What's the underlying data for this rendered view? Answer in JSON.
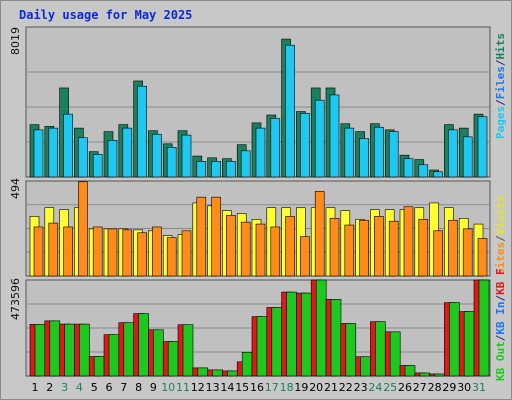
{
  "title": "Daily usage for May 2025",
  "colors": {
    "hits": "#1a8060",
    "files": "#1ec8f0",
    "visits": "#ffff33",
    "sites": "#ff8c1a",
    "kb_in": "#1ec81e",
    "kb_out": "#1e78f0",
    "kb_f": "#e01818",
    "background": "#c8c8c8",
    "plot_bg": "#c0c0c0",
    "green_day": "#1a8060"
  },
  "legend": {
    "top": [
      "Pages",
      "Files",
      "Hits"
    ],
    "mid": [
      "Visits",
      "Sites"
    ],
    "bottom": [
      "KB F",
      "KB In",
      "KB Out"
    ],
    "separator": "/"
  },
  "chart_data": [
    {
      "type": "bar",
      "panel": "hits-files-pages",
      "ymax_label": "8019",
      "ylim": [
        0,
        8019
      ],
      "categories": [
        "1",
        "2",
        "3",
        "4",
        "5",
        "6",
        "7",
        "8",
        "9",
        "10",
        "11",
        "12",
        "13",
        "14",
        "15",
        "16",
        "17",
        "18",
        "19",
        "20",
        "21",
        "22",
        "23",
        "24",
        "25",
        "26",
        "27",
        "28",
        "29",
        "30",
        "31"
      ],
      "weekend_days": [
        "3",
        "4",
        "10",
        "11",
        "17",
        "18",
        "24",
        "25",
        "31"
      ],
      "series": [
        {
          "name": "Hits",
          "values": [
            3000,
            2900,
            5100,
            2800,
            1450,
            2600,
            3000,
            5500,
            2650,
            1900,
            2650,
            1200,
            1100,
            1050,
            1850,
            3100,
            3550,
            7900,
            3750,
            5100,
            5100,
            3050,
            2600,
            3050,
            2700,
            1250,
            1000,
            400,
            3000,
            2800,
            3600
          ]
        },
        {
          "name": "Files",
          "values": [
            2700,
            2800,
            3600,
            2250,
            1300,
            2100,
            2800,
            5200,
            2450,
            1700,
            2400,
            900,
            900,
            900,
            1500,
            2800,
            3350,
            7550,
            3650,
            4400,
            4700,
            2800,
            2200,
            2850,
            2600,
            1050,
            700,
            300,
            2700,
            2300,
            3450
          ]
        },
        {
          "name": "Pages",
          "values": [
            0,
            0,
            0,
            0,
            0,
            0,
            0,
            0,
            0,
            0,
            0,
            0,
            0,
            0,
            0,
            0,
            0,
            0,
            0,
            0,
            0,
            0,
            0,
            0,
            0,
            0,
            0,
            0,
            0,
            0,
            0
          ]
        }
      ]
    },
    {
      "type": "bar",
      "panel": "visits-sites",
      "ymax_label": "494",
      "ylim": [
        0,
        494
      ],
      "categories": [
        "1",
        "2",
        "3",
        "4",
        "5",
        "6",
        "7",
        "8",
        "9",
        "10",
        "11",
        "12",
        "13",
        "14",
        "15",
        "16",
        "17",
        "18",
        "19",
        "20",
        "21",
        "22",
        "23",
        "24",
        "25",
        "26",
        "27",
        "28",
        "29",
        "30",
        "31"
      ],
      "series": [
        {
          "name": "Visits",
          "values": [
            310,
            355,
            345,
            355,
            245,
            245,
            245,
            240,
            235,
            210,
            215,
            380,
            365,
            340,
            325,
            295,
            355,
            355,
            355,
            355,
            355,
            340,
            295,
            345,
            345,
            345,
            355,
            380,
            355,
            300,
            270
          ]
        },
        {
          "name": "Sites",
          "values": [
            255,
            275,
            255,
            490,
            255,
            245,
            240,
            225,
            255,
            200,
            235,
            410,
            410,
            315,
            280,
            270,
            255,
            310,
            205,
            440,
            300,
            265,
            290,
            310,
            285,
            360,
            295,
            235,
            290,
            245,
            195
          ]
        }
      ]
    },
    {
      "type": "bar",
      "panel": "kbin-kbout-kbf",
      "ymax_label": "473596",
      "ylim": [
        0,
        473596
      ],
      "categories": [
        "1",
        "2",
        "3",
        "4",
        "5",
        "6",
        "7",
        "8",
        "9",
        "10",
        "11",
        "12",
        "13",
        "14",
        "15",
        "16",
        "17",
        "18",
        "19",
        "20",
        "21",
        "22",
        "23",
        "24",
        "25",
        "26",
        "27",
        "28",
        "29",
        "30",
        "31"
      ],
      "series": [
        {
          "name": "KB F",
          "values": [
            255000,
            272000,
            256000,
            256000,
            96000,
            204000,
            263000,
            308000,
            228000,
            170000,
            253000,
            40000,
            30000,
            25000,
            70000,
            293000,
            338000,
            414000,
            409000,
            477000,
            378000,
            259000,
            95000,
            268000,
            218000,
            52000,
            15000,
            10000,
            362000,
            318000,
            476000
          ]
        },
        {
          "name": "KB In",
          "values": [
            255000,
            272000,
            256000,
            256000,
            96000,
            204000,
            263000,
            308000,
            228000,
            170000,
            253000,
            40000,
            30000,
            25000,
            117000,
            293000,
            338000,
            414000,
            409000,
            477000,
            378000,
            259000,
            95000,
            268000,
            218000,
            52000,
            15000,
            10000,
            362000,
            318000,
            476000
          ]
        },
        {
          "name": "KB Out",
          "values": [
            0,
            0,
            0,
            0,
            0,
            0,
            0,
            0,
            0,
            0,
            0,
            0,
            0,
            0,
            0,
            0,
            0,
            0,
            0,
            0,
            0,
            0,
            0,
            0,
            0,
            0,
            0,
            0,
            0,
            0,
            0
          ]
        }
      ]
    }
  ]
}
